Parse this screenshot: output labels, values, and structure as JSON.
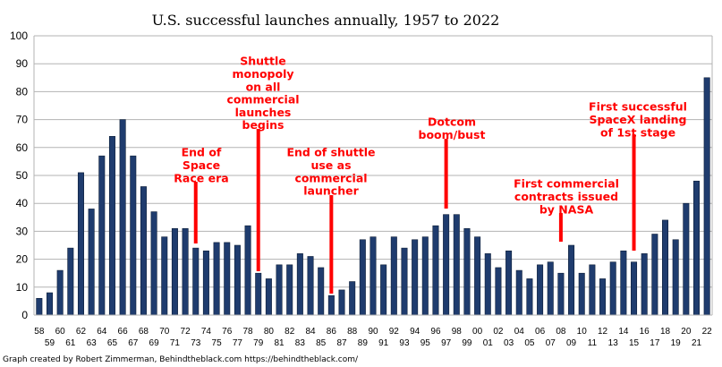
{
  "chart_data": {
    "type": "bar",
    "title": "U.S. successful launches annually, 1957 to 2022",
    "xlabel": "",
    "ylabel": "",
    "ylim": [
      0,
      100
    ],
    "yticks": [
      0,
      10,
      20,
      30,
      40,
      50,
      60,
      70,
      80,
      90,
      100
    ],
    "grid": true,
    "legend": "none",
    "bar_color": "#1f3c6e",
    "annotation_color": "#ff0000",
    "categories": [
      "58",
      "59",
      "60",
      "61",
      "62",
      "63",
      "64",
      "65",
      "66",
      "67",
      "68",
      "69",
      "70",
      "71",
      "72",
      "73",
      "74",
      "75",
      "76",
      "77",
      "78",
      "79",
      "80",
      "81",
      "82",
      "83",
      "84",
      "85",
      "86",
      "87",
      "88",
      "89",
      "90",
      "91",
      "92",
      "93",
      "94",
      "95",
      "96",
      "97",
      "98",
      "99",
      "00",
      "01",
      "02",
      "03",
      "04",
      "05",
      "06",
      "07",
      "08",
      "09",
      "10",
      "11",
      "12",
      "13",
      "14",
      "15",
      "16",
      "17",
      "18",
      "19",
      "20",
      "21",
      "22"
    ],
    "values": [
      6,
      8,
      16,
      24,
      51,
      38,
      57,
      64,
      70,
      57,
      46,
      37,
      28,
      31,
      31,
      24,
      23,
      26,
      26,
      25,
      32,
      15,
      13,
      18,
      18,
      22,
      21,
      17,
      7,
      9,
      12,
      27,
      28,
      18,
      28,
      24,
      27,
      28,
      32,
      36,
      36,
      31,
      28,
      22,
      17,
      23,
      16,
      13,
      18,
      19,
      15,
      25,
      15,
      18,
      13,
      19,
      23,
      19,
      22,
      29,
      34,
      27,
      40,
      48,
      85
    ],
    "annotations": [
      {
        "lines": [
          "End of",
          "Space",
          "Race era"
        ],
        "category": "73"
      },
      {
        "lines": [
          "Shuttle",
          "monopoly",
          "on all",
          "commercial",
          "launches",
          "begins"
        ],
        "category": "79"
      },
      {
        "lines": [
          "End of shuttle",
          "use as",
          "commercial",
          "launcher"
        ],
        "category": "86"
      },
      {
        "lines": [
          "Dotcom",
          "boom/bust"
        ],
        "category": "97"
      },
      {
        "lines": [
          "First commercial",
          "contracts issued",
          "by NASA"
        ],
        "category": "08"
      },
      {
        "lines": [
          "First successful",
          "SpaceX landing",
          "of 1st stage"
        ],
        "category": "15"
      }
    ]
  },
  "credit": "Graph created by Robert Zimmerman, Behindtheblack.com https://behindtheblack.com/"
}
